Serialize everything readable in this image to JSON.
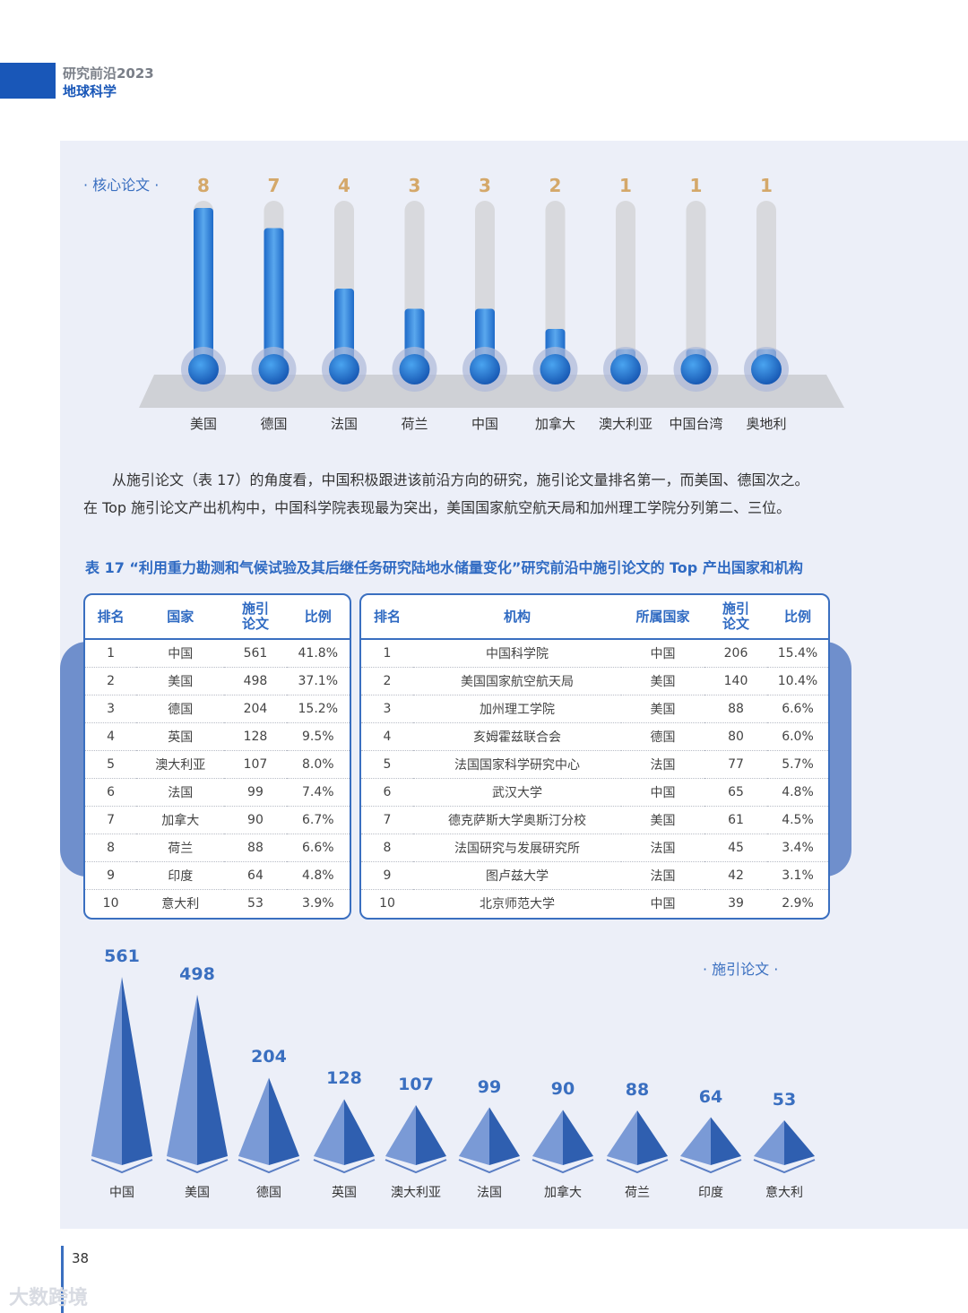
{
  "header": {
    "line1": "研究前沿2023",
    "line2": "地球科学"
  },
  "core_chart": {
    "legend": "· 核心论文 ·",
    "chart_data": {
      "type": "bar",
      "categories": [
        "美国",
        "德国",
        "法国",
        "荷兰",
        "中国",
        "加拿大",
        "澳大利亚",
        "中国台湾",
        "奥地利"
      ],
      "values": [
        8,
        7,
        4,
        3,
        3,
        2,
        1,
        1,
        1
      ],
      "ylim": [
        0,
        8
      ]
    }
  },
  "paragraph": {
    "line1": "从施引论文（表 17）的角度看，中国积极跟进该前沿方向的研究，施引论文量排名第一，而美国、德国次之。",
    "line2": "在 Top 施引论文产出机构中，中国科学院表现最为突出，美国国家航空航天局和加州理工学院分列第二、三位。"
  },
  "table_caption": "表 17 “利用重力勘测和气候试验及其后继任务研究陆地水储量变化”研究前沿中施引论文的 Top 产出国家和机构",
  "country_table": {
    "headers": {
      "rank": "排名",
      "country": "国家",
      "papers1": "施引",
      "papers2": "论文",
      "ratio": "比例"
    },
    "rows": [
      [
        "1",
        "中国",
        "561",
        "41.8%"
      ],
      [
        "2",
        "美国",
        "498",
        "37.1%"
      ],
      [
        "3",
        "德国",
        "204",
        "15.2%"
      ],
      [
        "4",
        "英国",
        "128",
        "9.5%"
      ],
      [
        "5",
        "澳大利亚",
        "107",
        "8.0%"
      ],
      [
        "6",
        "法国",
        "99",
        "7.4%"
      ],
      [
        "7",
        "加拿大",
        "90",
        "6.7%"
      ],
      [
        "8",
        "荷兰",
        "88",
        "6.6%"
      ],
      [
        "9",
        "印度",
        "64",
        "4.8%"
      ],
      [
        "10",
        "意大利",
        "53",
        "3.9%"
      ]
    ]
  },
  "institution_table": {
    "headers": {
      "rank": "排名",
      "inst": "机构",
      "country": "所属国家",
      "papers1": "施引",
      "papers2": "论文",
      "ratio": "比例"
    },
    "rows": [
      [
        "1",
        "中国科学院",
        "中国",
        "206",
        "15.4%"
      ],
      [
        "2",
        "美国国家航空航天局",
        "美国",
        "140",
        "10.4%"
      ],
      [
        "3",
        "加州理工学院",
        "美国",
        "88",
        "6.6%"
      ],
      [
        "4",
        "亥姆霍兹联合会",
        "德国",
        "80",
        "6.0%"
      ],
      [
        "5",
        "法国国家科学研究中心",
        "法国",
        "77",
        "5.7%"
      ],
      [
        "6",
        "武汉大学",
        "中国",
        "65",
        "4.8%"
      ],
      [
        "7",
        "德克萨斯大学奥斯汀分校",
        "美国",
        "61",
        "4.5%"
      ],
      [
        "8",
        "法国研究与发展研究所",
        "法国",
        "45",
        "3.4%"
      ],
      [
        "9",
        "图卢兹大学",
        "法国",
        "42",
        "3.1%"
      ],
      [
        "10",
        "北京师范大学",
        "中国",
        "39",
        "2.9%"
      ]
    ]
  },
  "citing_chart": {
    "legend": "· 施引论文 ·",
    "chart_data": {
      "type": "bar",
      "categories": [
        "中国",
        "美国",
        "德国",
        "英国",
        "澳大利亚",
        "法国",
        "加拿大",
        "荷兰",
        "印度",
        "意大利"
      ],
      "values": [
        561,
        498,
        204,
        128,
        107,
        99,
        90,
        88,
        64,
        53
      ]
    }
  },
  "page_number": "38",
  "watermark": "大数跨境",
  "colors": {
    "accent": "#1957b8",
    "bar": "#3a8ad8",
    "pyramid_light": "#7a9ad6",
    "pyramid_dark": "#2f5fb0",
    "value_gold": "#d4a86a"
  }
}
